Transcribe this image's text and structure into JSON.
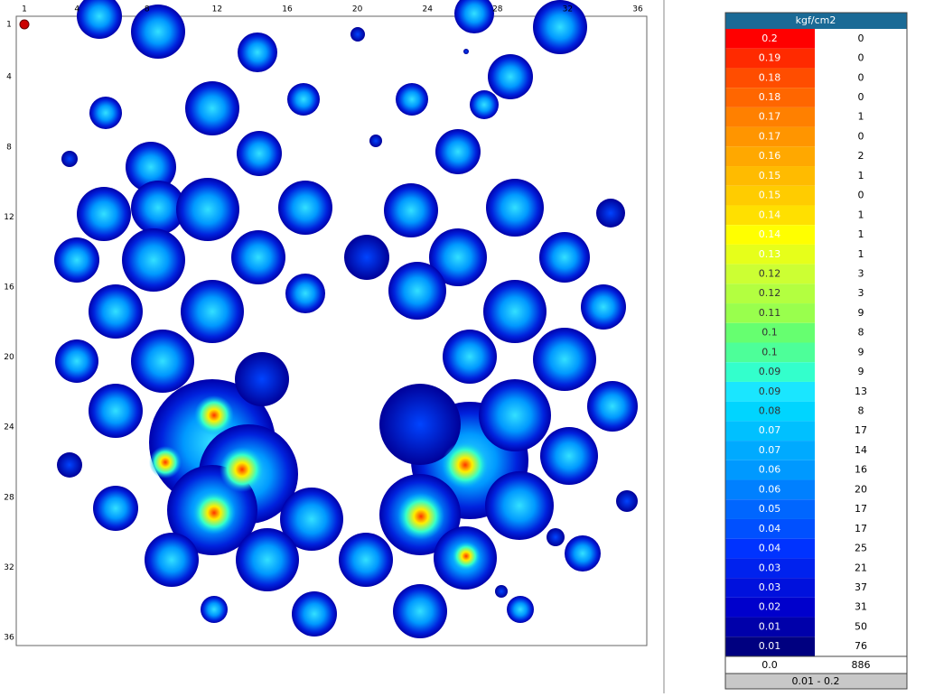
{
  "grid": {
    "x_ticks": [
      1,
      4,
      8,
      12,
      16,
      20,
      24,
      28,
      32,
      36
    ],
    "y_ticks": [
      1,
      4,
      8,
      12,
      16,
      20,
      24,
      28,
      32,
      36
    ]
  },
  "legend": {
    "title": "kgf/cm2",
    "rows": [
      {
        "label": "0.2",
        "count": "0",
        "color": "#ff0000"
      },
      {
        "label": "0.19",
        "count": "0",
        "color": "#ff2a00"
      },
      {
        "label": "0.18",
        "count": "0",
        "color": "#ff4d00"
      },
      {
        "label": "0.18",
        "count": "0",
        "color": "#ff6600"
      },
      {
        "label": "0.17",
        "count": "1",
        "color": "#ff8000"
      },
      {
        "label": "0.17",
        "count": "0",
        "color": "#ff9500"
      },
      {
        "label": "0.16",
        "count": "2",
        "color": "#ffa800"
      },
      {
        "label": "0.15",
        "count": "1",
        "color": "#ffbb00"
      },
      {
        "label": "0.15",
        "count": "0",
        "color": "#ffcc00"
      },
      {
        "label": "0.14",
        "count": "1",
        "color": "#ffe000"
      },
      {
        "label": "0.14",
        "count": "1",
        "color": "#ffff00"
      },
      {
        "label": "0.13",
        "count": "1",
        "color": "#e6ff1a"
      },
      {
        "label": "0.12",
        "count": "3",
        "color": "#ccff33"
      },
      {
        "label": "0.12",
        "count": "3",
        "color": "#b3ff40"
      },
      {
        "label": "0.11",
        "count": "9",
        "color": "#99ff4d"
      },
      {
        "label": "0.1",
        "count": "8",
        "color": "#66ff70"
      },
      {
        "label": "0.1",
        "count": "9",
        "color": "#4dff99"
      },
      {
        "label": "0.09",
        "count": "9",
        "color": "#33ffcc"
      },
      {
        "label": "0.09",
        "count": "13",
        "color": "#1ae6ff"
      },
      {
        "label": "0.08",
        "count": "8",
        "color": "#00d5ff"
      },
      {
        "label": "0.07",
        "count": "17",
        "color": "#00c0ff"
      },
      {
        "label": "0.07",
        "count": "14",
        "color": "#00aaff"
      },
      {
        "label": "0.06",
        "count": "16",
        "color": "#0099ff"
      },
      {
        "label": "0.06",
        "count": "20",
        "color": "#0080ff"
      },
      {
        "label": "0.05",
        "count": "17",
        "color": "#0066ff"
      },
      {
        "label": "0.04",
        "count": "17",
        "color": "#0050ff"
      },
      {
        "label": "0.04",
        "count": "25",
        "color": "#0033ff"
      },
      {
        "label": "0.03",
        "count": "21",
        "color": "#0022ee"
      },
      {
        "label": "0.03",
        "count": "37",
        "color": "#0011dd"
      },
      {
        "label": "0.02",
        "count": "31",
        "color": "#0000cc"
      },
      {
        "label": "0.01",
        "count": "50",
        "color": "#0000aa"
      },
      {
        "label": "0.01",
        "count": "76",
        "color": "#000080"
      }
    ],
    "zero_row": {
      "label": "0.0",
      "count": "886"
    },
    "range": "0.01 - 0.2"
  }
}
